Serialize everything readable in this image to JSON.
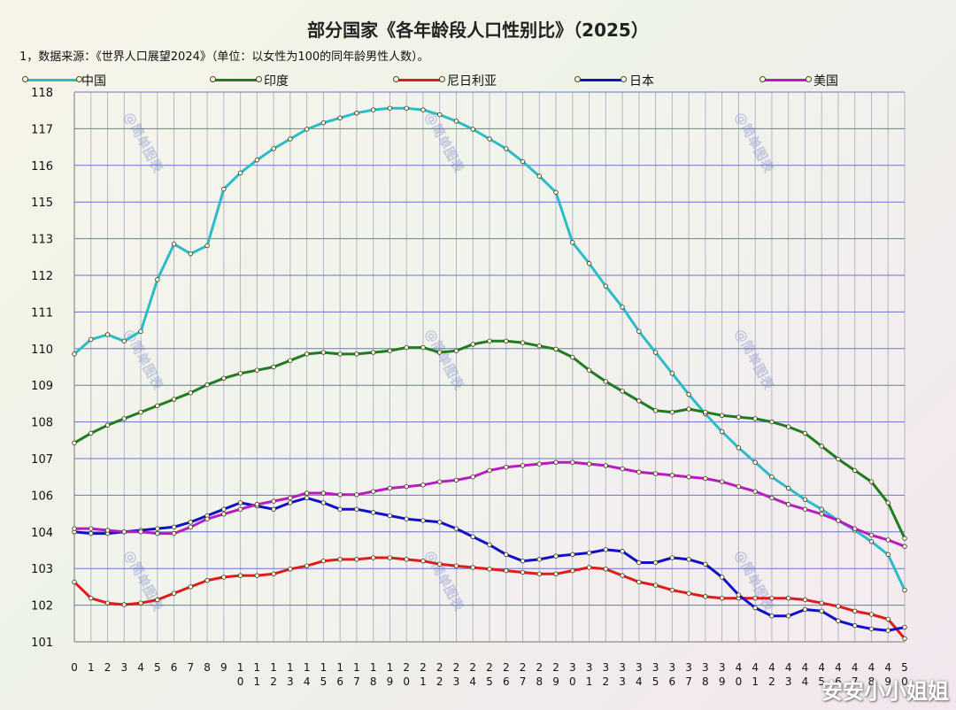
{
  "title": "部分国家《各年龄段人口性别比》（2025）",
  "subtitle": "1，数据来源：《世界人口展望2024》（单位：以女性为100的同年龄男性人数）。",
  "watermark": "安安小小姐姐",
  "plot_watermark": "@简单图表",
  "chart_data": {
    "type": "line",
    "title": "部分国家《各年龄段人口性别比》（2025）",
    "xlabel": "",
    "ylabel": "",
    "ylim": [
      101,
      118
    ],
    "y_ticks": [
      "101",
      "102",
      "103",
      "104",
      "106",
      "107",
      "108",
      "109",
      "110",
      "111",
      "112",
      "113",
      "115",
      "116",
      "117",
      "118"
    ],
    "x": [
      0,
      1,
      2,
      3,
      4,
      5,
      6,
      7,
      8,
      9,
      10,
      11,
      12,
      13,
      14,
      15,
      16,
      17,
      18,
      19,
      20,
      21,
      22,
      23,
      24,
      25,
      26,
      27,
      28,
      29,
      30,
      31,
      32,
      33,
      34,
      35,
      36,
      37,
      38,
      39,
      40,
      41,
      42,
      43,
      44,
      45,
      46,
      47,
      48,
      49,
      50
    ],
    "grid": true,
    "legend_position": "top",
    "series": [
      {
        "name": "中国",
        "color": "#2bbcc8",
        "values": [
          109.9,
          110.35,
          110.5,
          110.3,
          110.6,
          112.2,
          113.3,
          113.0,
          113.25,
          115.0,
          115.5,
          115.9,
          116.25,
          116.55,
          116.85,
          117.05,
          117.2,
          117.35,
          117.45,
          117.5,
          117.5,
          117.45,
          117.3,
          117.1,
          116.85,
          116.55,
          116.25,
          115.85,
          115.4,
          114.9,
          113.35,
          112.7,
          112.0,
          111.35,
          110.6,
          109.95,
          109.3,
          108.65,
          108.05,
          107.5,
          107.0,
          106.55,
          106.1,
          105.75,
          105.4,
          105.1,
          104.75,
          104.45,
          104.1,
          103.7,
          102.6
        ]
      },
      {
        "name": "印度",
        "color": "#1e7d1e",
        "values": [
          107.15,
          107.45,
          107.7,
          107.9,
          108.1,
          108.3,
          108.5,
          108.7,
          108.95,
          109.15,
          109.3,
          109.4,
          109.5,
          109.7,
          109.9,
          109.95,
          109.9,
          109.9,
          109.95,
          110.0,
          110.1,
          110.1,
          109.95,
          110.0,
          110.2,
          110.3,
          110.3,
          110.25,
          110.15,
          110.05,
          109.8,
          109.4,
          109.05,
          108.75,
          108.45,
          108.15,
          108.1,
          108.2,
          108.1,
          108.0,
          107.95,
          107.9,
          107.8,
          107.65,
          107.45,
          107.05,
          106.65,
          106.3,
          105.95,
          105.3,
          104.2
        ]
      },
      {
        "name": "尼日利亚",
        "color": "#e01b1b",
        "values": [
          102.85,
          102.35,
          102.2,
          102.15,
          102.2,
          102.3,
          102.5,
          102.7,
          102.9,
          103.0,
          103.05,
          103.05,
          103.1,
          103.25,
          103.35,
          103.5,
          103.55,
          103.55,
          103.6,
          103.6,
          103.55,
          103.5,
          103.4,
          103.35,
          103.3,
          103.25,
          103.2,
          103.15,
          103.1,
          103.1,
          103.2,
          103.3,
          103.25,
          103.05,
          102.85,
          102.75,
          102.6,
          102.5,
          102.4,
          102.35,
          102.35,
          102.35,
          102.35,
          102.35,
          102.3,
          102.2,
          102.1,
          101.95,
          101.85,
          101.7,
          101.1
        ]
      },
      {
        "name": "日本",
        "color": "#1010c8",
        "values": [
          104.4,
          104.35,
          104.35,
          104.4,
          104.45,
          104.5,
          104.55,
          104.7,
          104.9,
          105.1,
          105.3,
          105.2,
          105.1,
          105.3,
          105.45,
          105.3,
          105.1,
          105.1,
          105.0,
          104.9,
          104.8,
          104.75,
          104.7,
          104.5,
          104.25,
          104.0,
          103.7,
          103.5,
          103.55,
          103.65,
          103.7,
          103.75,
          103.85,
          103.8,
          103.45,
          103.45,
          103.6,
          103.55,
          103.4,
          103.0,
          102.45,
          102.05,
          101.8,
          101.8,
          102.0,
          101.95,
          101.65,
          101.5,
          101.4,
          101.35,
          101.45
        ]
      },
      {
        "name": "美国",
        "color": "#b81cc0",
        "values": [
          104.5,
          104.5,
          104.45,
          104.4,
          104.4,
          104.35,
          104.35,
          104.55,
          104.8,
          104.95,
          105.1,
          105.25,
          105.35,
          105.45,
          105.6,
          105.6,
          105.55,
          105.55,
          105.65,
          105.75,
          105.8,
          105.85,
          105.95,
          106.0,
          106.1,
          106.3,
          106.4,
          106.45,
          106.5,
          106.55,
          106.55,
          106.5,
          106.45,
          106.35,
          106.25,
          106.2,
          106.15,
          106.1,
          106.05,
          105.95,
          105.8,
          105.65,
          105.45,
          105.25,
          105.1,
          104.95,
          104.75,
          104.5,
          104.3,
          104.15,
          103.95
        ]
      }
    ]
  }
}
